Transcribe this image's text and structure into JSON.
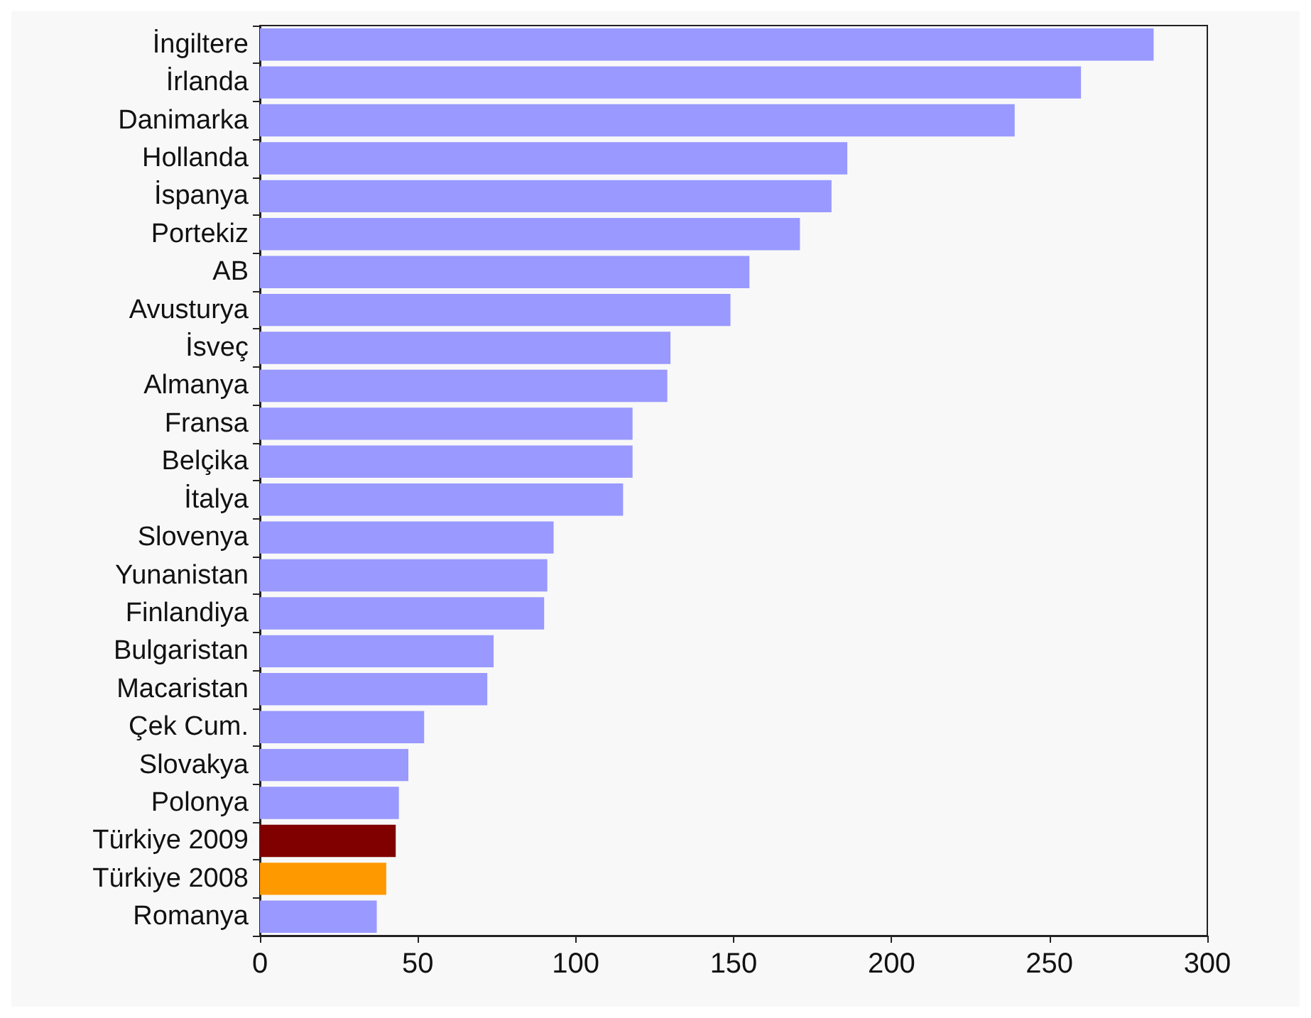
{
  "chart_data": {
    "type": "bar",
    "orientation": "horizontal",
    "categories": [
      "İngiltere",
      "İrlanda",
      "Danimarka",
      "Hollanda",
      "İspanya",
      "Portekiz",
      "AB",
      "Avusturya",
      "İsveç",
      "Almanya",
      "Fransa",
      "Belçika",
      "İtalya",
      "Slovenya",
      "Yunanistan",
      "Finlandiya",
      "Bulgaristan",
      "Macaristan",
      "Çek Cum.",
      "Slovakya",
      "Polonya",
      "Türkiye 2009",
      "Türkiye 2008",
      "Romanya"
    ],
    "values": [
      283,
      260,
      239,
      186,
      181,
      171,
      155,
      149,
      130,
      129,
      118,
      118,
      115,
      93,
      91,
      90,
      74,
      72,
      52,
      47,
      44,
      43,
      40,
      37
    ],
    "colors": [
      "#9999ff",
      "#9999ff",
      "#9999ff",
      "#9999ff",
      "#9999ff",
      "#9999ff",
      "#9999ff",
      "#9999ff",
      "#9999ff",
      "#9999ff",
      "#9999ff",
      "#9999ff",
      "#9999ff",
      "#9999ff",
      "#9999ff",
      "#9999ff",
      "#9999ff",
      "#9999ff",
      "#9999ff",
      "#9999ff",
      "#9999ff",
      "#800000",
      "#ff9900",
      "#9999ff"
    ],
    "xlim": [
      0,
      300
    ],
    "xticks": [
      0,
      50,
      100,
      150,
      200,
      250,
      300
    ],
    "grid": false
  }
}
